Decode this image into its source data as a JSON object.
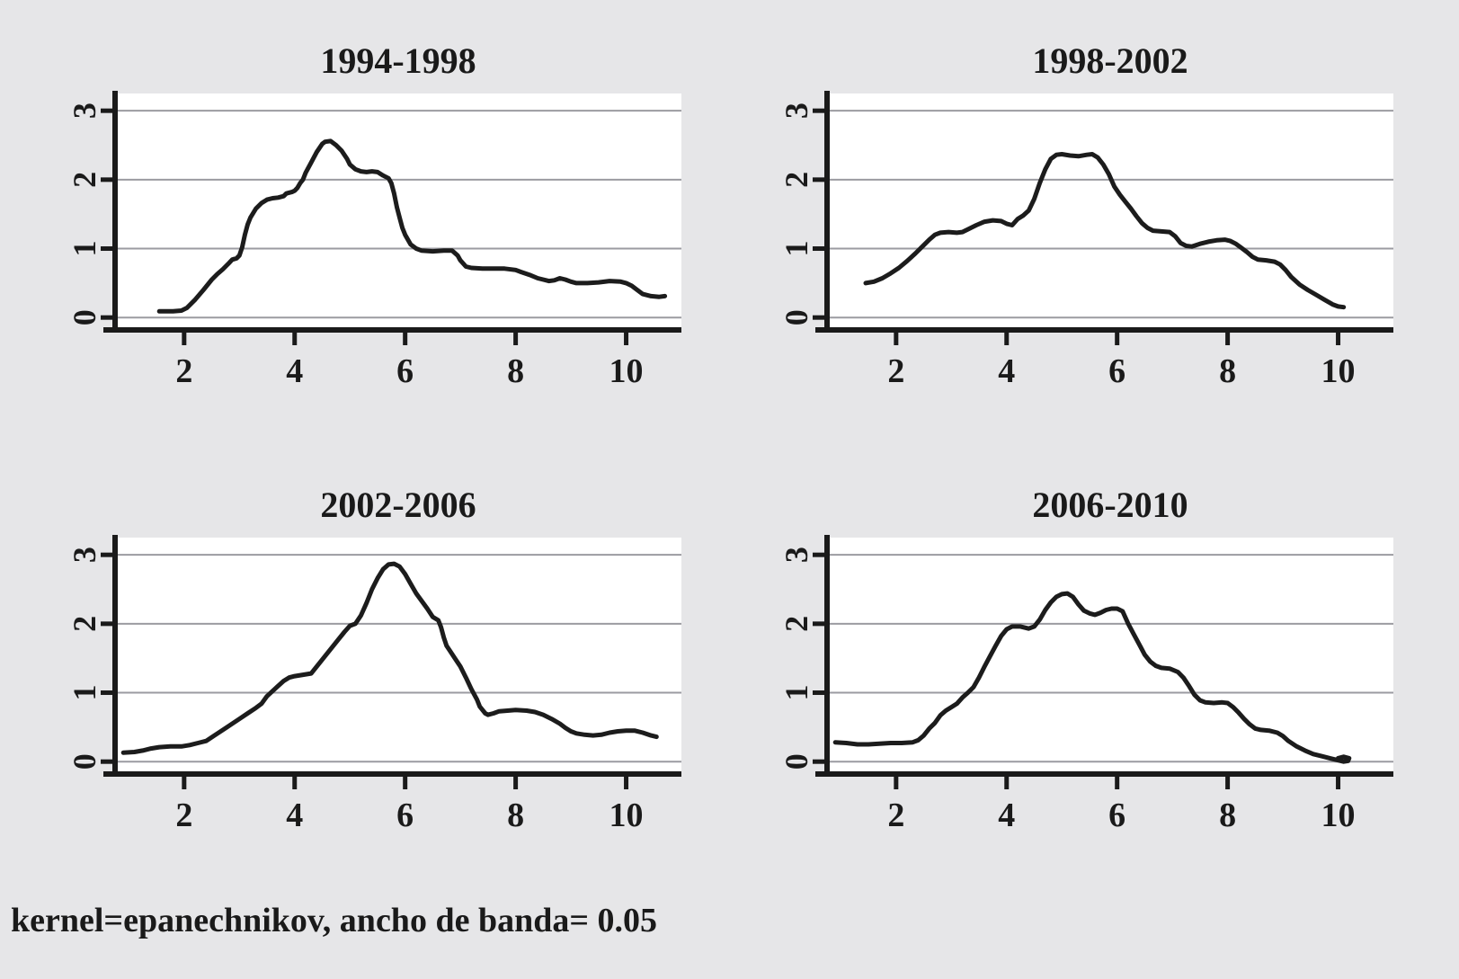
{
  "page": {
    "background": "#e6e6e8",
    "footer_note": "kernel=epanechnikov, ancho de banda= 0.05"
  },
  "style": {
    "curve_color": "#1c1c1c",
    "axis_color": "#1a1a1a",
    "grid_color": "#9b9ba1",
    "plot_bg": "#ffffff",
    "text_color": "#1a1a1a"
  },
  "chart_data": [
    {
      "type": "line",
      "title": "1994-1998",
      "xlabel": "",
      "ylabel": "",
      "x_ticks": [
        2,
        4,
        6,
        8,
        10
      ],
      "y_ticks": [
        0,
        1,
        2,
        3
      ],
      "xlim": [
        0.75,
        11.0
      ],
      "ylim": [
        -0.18,
        3.25
      ],
      "grid": "horizontal",
      "legend": "none",
      "points": [
        [
          1.55,
          0.09
        ],
        [
          1.8,
          0.09
        ],
        [
          1.95,
          0.1
        ],
        [
          2.05,
          0.14
        ],
        [
          2.2,
          0.26
        ],
        [
          2.35,
          0.4
        ],
        [
          2.5,
          0.55
        ],
        [
          2.6,
          0.63
        ],
        [
          2.7,
          0.7
        ],
        [
          2.8,
          0.78
        ],
        [
          2.87,
          0.84
        ],
        [
          2.95,
          0.86
        ],
        [
          3.0,
          0.9
        ],
        [
          3.05,
          1.02
        ],
        [
          3.1,
          1.2
        ],
        [
          3.15,
          1.35
        ],
        [
          3.2,
          1.45
        ],
        [
          3.3,
          1.58
        ],
        [
          3.4,
          1.66
        ],
        [
          3.5,
          1.71
        ],
        [
          3.6,
          1.73
        ],
        [
          3.7,
          1.74
        ],
        [
          3.8,
          1.76
        ],
        [
          3.85,
          1.8
        ],
        [
          3.95,
          1.82
        ],
        [
          4.0,
          1.84
        ],
        [
          4.05,
          1.88
        ],
        [
          4.1,
          1.95
        ],
        [
          4.15,
          2.0
        ],
        [
          4.2,
          2.1
        ],
        [
          4.3,
          2.25
        ],
        [
          4.4,
          2.4
        ],
        [
          4.5,
          2.52
        ],
        [
          4.55,
          2.55
        ],
        [
          4.65,
          2.56
        ],
        [
          4.75,
          2.5
        ],
        [
          4.85,
          2.42
        ],
        [
          4.95,
          2.3
        ],
        [
          5.0,
          2.22
        ],
        [
          5.1,
          2.15
        ],
        [
          5.2,
          2.12
        ],
        [
          5.3,
          2.11
        ],
        [
          5.4,
          2.12
        ],
        [
          5.5,
          2.11
        ],
        [
          5.6,
          2.06
        ],
        [
          5.7,
          2.02
        ],
        [
          5.75,
          1.95
        ],
        [
          5.8,
          1.8
        ],
        [
          5.85,
          1.6
        ],
        [
          5.9,
          1.45
        ],
        [
          5.95,
          1.3
        ],
        [
          6.0,
          1.2
        ],
        [
          6.1,
          1.06
        ],
        [
          6.2,
          1.0
        ],
        [
          6.3,
          0.97
        ],
        [
          6.5,
          0.96
        ],
        [
          6.7,
          0.97
        ],
        [
          6.85,
          0.97
        ],
        [
          6.95,
          0.9
        ],
        [
          7.0,
          0.83
        ],
        [
          7.1,
          0.74
        ],
        [
          7.2,
          0.72
        ],
        [
          7.4,
          0.71
        ],
        [
          7.6,
          0.71
        ],
        [
          7.8,
          0.71
        ],
        [
          8.0,
          0.69
        ],
        [
          8.1,
          0.66
        ],
        [
          8.25,
          0.62
        ],
        [
          8.4,
          0.57
        ],
        [
          8.5,
          0.55
        ],
        [
          8.6,
          0.53
        ],
        [
          8.7,
          0.54
        ],
        [
          8.8,
          0.57
        ],
        [
          8.9,
          0.55
        ],
        [
          9.0,
          0.52
        ],
        [
          9.1,
          0.5
        ],
        [
          9.3,
          0.5
        ],
        [
          9.5,
          0.51
        ],
        [
          9.7,
          0.53
        ],
        [
          9.9,
          0.52
        ],
        [
          10.0,
          0.5
        ],
        [
          10.1,
          0.46
        ],
        [
          10.2,
          0.4
        ],
        [
          10.3,
          0.34
        ],
        [
          10.45,
          0.31
        ],
        [
          10.6,
          0.3
        ],
        [
          10.7,
          0.31
        ]
      ]
    },
    {
      "type": "line",
      "title": "1998-2002",
      "xlabel": "",
      "ylabel": "",
      "x_ticks": [
        2,
        4,
        6,
        8,
        10
      ],
      "y_ticks": [
        0,
        1,
        2,
        3
      ],
      "xlim": [
        0.75,
        11.0
      ],
      "ylim": [
        -0.18,
        3.25
      ],
      "grid": "horizontal",
      "legend": "none",
      "points": [
        [
          1.45,
          0.5
        ],
        [
          1.6,
          0.52
        ],
        [
          1.75,
          0.57
        ],
        [
          1.9,
          0.64
        ],
        [
          2.05,
          0.72
        ],
        [
          2.2,
          0.82
        ],
        [
          2.35,
          0.93
        ],
        [
          2.5,
          1.05
        ],
        [
          2.6,
          1.13
        ],
        [
          2.7,
          1.2
        ],
        [
          2.8,
          1.23
        ],
        [
          2.95,
          1.24
        ],
        [
          3.1,
          1.23
        ],
        [
          3.2,
          1.24
        ],
        [
          3.3,
          1.28
        ],
        [
          3.45,
          1.34
        ],
        [
          3.6,
          1.39
        ],
        [
          3.75,
          1.41
        ],
        [
          3.9,
          1.4
        ],
        [
          4.0,
          1.36
        ],
        [
          4.1,
          1.34
        ],
        [
          4.2,
          1.43
        ],
        [
          4.3,
          1.48
        ],
        [
          4.4,
          1.55
        ],
        [
          4.5,
          1.72
        ],
        [
          4.6,
          1.95
        ],
        [
          4.7,
          2.15
        ],
        [
          4.8,
          2.3
        ],
        [
          4.9,
          2.36
        ],
        [
          5.0,
          2.37
        ],
        [
          5.15,
          2.35
        ],
        [
          5.3,
          2.34
        ],
        [
          5.45,
          2.36
        ],
        [
          5.55,
          2.37
        ],
        [
          5.65,
          2.32
        ],
        [
          5.75,
          2.22
        ],
        [
          5.85,
          2.08
        ],
        [
          5.95,
          1.9
        ],
        [
          6.05,
          1.78
        ],
        [
          6.15,
          1.68
        ],
        [
          6.25,
          1.58
        ],
        [
          6.35,
          1.47
        ],
        [
          6.45,
          1.37
        ],
        [
          6.55,
          1.3
        ],
        [
          6.65,
          1.26
        ],
        [
          6.8,
          1.25
        ],
        [
          6.95,
          1.24
        ],
        [
          7.05,
          1.18
        ],
        [
          7.15,
          1.08
        ],
        [
          7.25,
          1.04
        ],
        [
          7.35,
          1.03
        ],
        [
          7.5,
          1.07
        ],
        [
          7.65,
          1.1
        ],
        [
          7.8,
          1.12
        ],
        [
          7.95,
          1.13
        ],
        [
          8.05,
          1.11
        ],
        [
          8.15,
          1.07
        ],
        [
          8.25,
          1.01
        ],
        [
          8.35,
          0.95
        ],
        [
          8.45,
          0.88
        ],
        [
          8.55,
          0.84
        ],
        [
          8.7,
          0.83
        ],
        [
          8.85,
          0.81
        ],
        [
          8.95,
          0.77
        ],
        [
          9.05,
          0.69
        ],
        [
          9.15,
          0.59
        ],
        [
          9.3,
          0.48
        ],
        [
          9.45,
          0.4
        ],
        [
          9.6,
          0.33
        ],
        [
          9.75,
          0.26
        ],
        [
          9.9,
          0.19
        ],
        [
          10.0,
          0.16
        ],
        [
          10.1,
          0.15
        ]
      ]
    },
    {
      "type": "line",
      "title": "2002-2006",
      "xlabel": "",
      "ylabel": "",
      "x_ticks": [
        2,
        4,
        6,
        8,
        10
      ],
      "y_ticks": [
        0,
        1,
        2,
        3
      ],
      "xlim": [
        0.75,
        11.0
      ],
      "ylim": [
        -0.18,
        3.25
      ],
      "grid": "horizontal",
      "legend": "none",
      "points": [
        [
          0.9,
          0.13
        ],
        [
          1.1,
          0.14
        ],
        [
          1.25,
          0.16
        ],
        [
          1.4,
          0.19
        ],
        [
          1.55,
          0.21
        ],
        [
          1.75,
          0.22
        ],
        [
          1.95,
          0.22
        ],
        [
          2.1,
          0.24
        ],
        [
          2.25,
          0.27
        ],
        [
          2.4,
          0.3
        ],
        [
          2.55,
          0.38
        ],
        [
          2.7,
          0.46
        ],
        [
          2.85,
          0.54
        ],
        [
          3.0,
          0.62
        ],
        [
          3.15,
          0.7
        ],
        [
          3.3,
          0.78
        ],
        [
          3.4,
          0.84
        ],
        [
          3.5,
          0.95
        ],
        [
          3.65,
          1.06
        ],
        [
          3.8,
          1.17
        ],
        [
          3.9,
          1.22
        ],
        [
          4.0,
          1.24
        ],
        [
          4.15,
          1.26
        ],
        [
          4.3,
          1.28
        ],
        [
          4.4,
          1.38
        ],
        [
          4.5,
          1.48
        ],
        [
          4.65,
          1.63
        ],
        [
          4.8,
          1.78
        ],
        [
          4.9,
          1.88
        ],
        [
          5.0,
          1.97
        ],
        [
          5.1,
          2.0
        ],
        [
          5.2,
          2.12
        ],
        [
          5.3,
          2.3
        ],
        [
          5.4,
          2.5
        ],
        [
          5.5,
          2.66
        ],
        [
          5.6,
          2.79
        ],
        [
          5.7,
          2.86
        ],
        [
          5.8,
          2.87
        ],
        [
          5.9,
          2.83
        ],
        [
          6.0,
          2.72
        ],
        [
          6.1,
          2.58
        ],
        [
          6.2,
          2.44
        ],
        [
          6.3,
          2.33
        ],
        [
          6.4,
          2.22
        ],
        [
          6.5,
          2.1
        ],
        [
          6.6,
          2.05
        ],
        [
          6.65,
          1.95
        ],
        [
          6.7,
          1.8
        ],
        [
          6.75,
          1.68
        ],
        [
          6.8,
          1.62
        ],
        [
          6.9,
          1.5
        ],
        [
          7.0,
          1.38
        ],
        [
          7.1,
          1.22
        ],
        [
          7.2,
          1.05
        ],
        [
          7.3,
          0.9
        ],
        [
          7.35,
          0.8
        ],
        [
          7.45,
          0.7
        ],
        [
          7.5,
          0.68
        ],
        [
          7.6,
          0.7
        ],
        [
          7.7,
          0.73
        ],
        [
          7.85,
          0.74
        ],
        [
          8.0,
          0.75
        ],
        [
          8.2,
          0.74
        ],
        [
          8.35,
          0.72
        ],
        [
          8.5,
          0.68
        ],
        [
          8.65,
          0.62
        ],
        [
          8.8,
          0.55
        ],
        [
          8.9,
          0.49
        ],
        [
          9.0,
          0.44
        ],
        [
          9.1,
          0.41
        ],
        [
          9.25,
          0.39
        ],
        [
          9.4,
          0.38
        ],
        [
          9.55,
          0.39
        ],
        [
          9.7,
          0.42
        ],
        [
          9.85,
          0.44
        ],
        [
          10.0,
          0.45
        ],
        [
          10.15,
          0.45
        ],
        [
          10.3,
          0.42
        ],
        [
          10.45,
          0.38
        ],
        [
          10.55,
          0.36
        ]
      ]
    },
    {
      "type": "line",
      "title": "2006-2010",
      "xlabel": "",
      "ylabel": "",
      "x_ticks": [
        2,
        4,
        6,
        8,
        10
      ],
      "y_ticks": [
        0,
        1,
        2,
        3
      ],
      "xlim": [
        0.75,
        11.0
      ],
      "ylim": [
        -0.18,
        3.25
      ],
      "grid": "horizontal",
      "legend": "none",
      "points": [
        [
          0.9,
          0.28
        ],
        [
          1.1,
          0.27
        ],
        [
          1.3,
          0.25
        ],
        [
          1.5,
          0.25
        ],
        [
          1.7,
          0.26
        ],
        [
          1.9,
          0.27
        ],
        [
          2.1,
          0.27
        ],
        [
          2.3,
          0.28
        ],
        [
          2.4,
          0.31
        ],
        [
          2.5,
          0.38
        ],
        [
          2.6,
          0.48
        ],
        [
          2.7,
          0.56
        ],
        [
          2.8,
          0.67
        ],
        [
          2.9,
          0.74
        ],
        [
          3.0,
          0.79
        ],
        [
          3.1,
          0.84
        ],
        [
          3.2,
          0.93
        ],
        [
          3.3,
          1.0
        ],
        [
          3.4,
          1.08
        ],
        [
          3.5,
          1.22
        ],
        [
          3.6,
          1.38
        ],
        [
          3.7,
          1.53
        ],
        [
          3.8,
          1.68
        ],
        [
          3.9,
          1.82
        ],
        [
          4.0,
          1.92
        ],
        [
          4.1,
          1.96
        ],
        [
          4.25,
          1.96
        ],
        [
          4.4,
          1.93
        ],
        [
          4.5,
          1.96
        ],
        [
          4.6,
          2.06
        ],
        [
          4.7,
          2.2
        ],
        [
          4.8,
          2.31
        ],
        [
          4.9,
          2.39
        ],
        [
          5.0,
          2.43
        ],
        [
          5.1,
          2.44
        ],
        [
          5.2,
          2.39
        ],
        [
          5.3,
          2.28
        ],
        [
          5.4,
          2.19
        ],
        [
          5.5,
          2.15
        ],
        [
          5.6,
          2.13
        ],
        [
          5.7,
          2.16
        ],
        [
          5.8,
          2.2
        ],
        [
          5.9,
          2.22
        ],
        [
          6.0,
          2.22
        ],
        [
          6.1,
          2.18
        ],
        [
          6.2,
          2.0
        ],
        [
          6.3,
          1.85
        ],
        [
          6.4,
          1.7
        ],
        [
          6.5,
          1.55
        ],
        [
          6.6,
          1.45
        ],
        [
          6.7,
          1.39
        ],
        [
          6.8,
          1.36
        ],
        [
          6.95,
          1.35
        ],
        [
          7.1,
          1.3
        ],
        [
          7.2,
          1.22
        ],
        [
          7.3,
          1.1
        ],
        [
          7.4,
          0.97
        ],
        [
          7.5,
          0.89
        ],
        [
          7.6,
          0.86
        ],
        [
          7.75,
          0.85
        ],
        [
          7.9,
          0.86
        ],
        [
          8.0,
          0.85
        ],
        [
          8.1,
          0.79
        ],
        [
          8.2,
          0.71
        ],
        [
          8.3,
          0.62
        ],
        [
          8.4,
          0.54
        ],
        [
          8.5,
          0.48
        ],
        [
          8.6,
          0.46
        ],
        [
          8.75,
          0.45
        ],
        [
          8.9,
          0.42
        ],
        [
          9.0,
          0.37
        ],
        [
          9.1,
          0.3
        ],
        [
          9.25,
          0.22
        ],
        [
          9.4,
          0.16
        ],
        [
          9.55,
          0.11
        ],
        [
          9.7,
          0.08
        ],
        [
          9.85,
          0.05
        ],
        [
          10.0,
          0.02
        ],
        [
          10.1,
          0.0
        ],
        [
          10.18,
          0.01
        ],
        [
          10.2,
          0.05
        ],
        [
          10.1,
          0.07
        ],
        [
          10.0,
          0.05
        ],
        [
          10.02,
          0.02
        ]
      ]
    }
  ]
}
